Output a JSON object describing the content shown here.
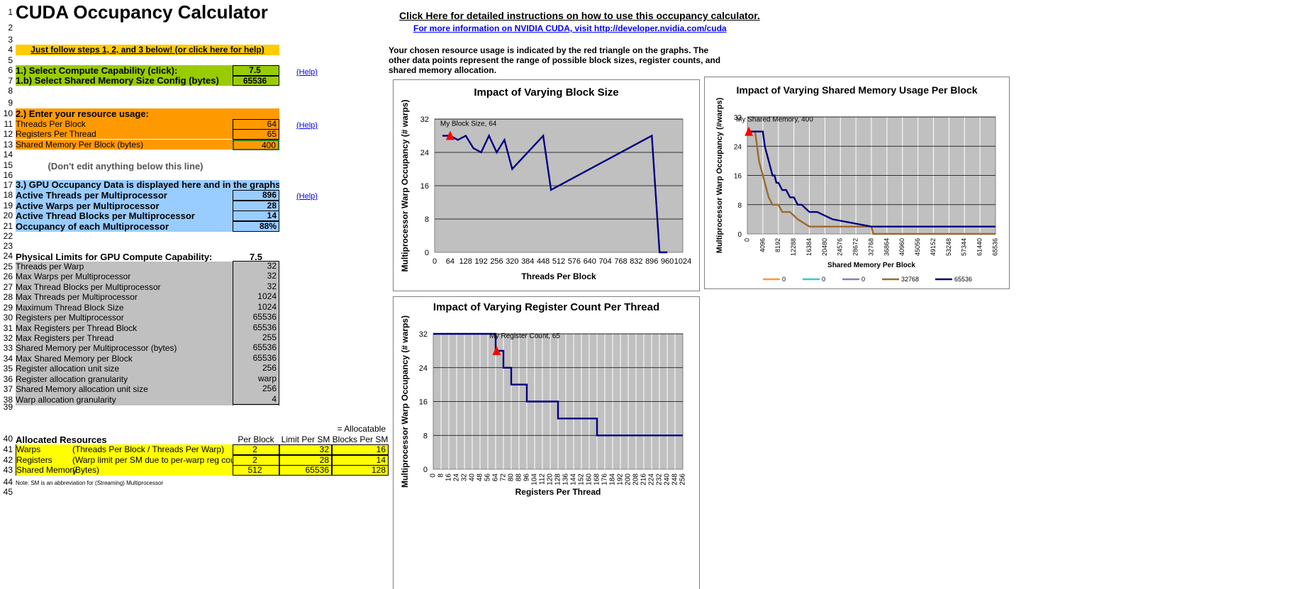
{
  "title": "CUDA Occupancy Calculator",
  "links": {
    "instructions": "Click Here for detailed instructions on how to use this occupancy calculator.",
    "more_info": "For more information on NVIDIA CUDA, visit http://developer.nvidia.com/cuda"
  },
  "rows": [
    "1",
    "2",
    "3",
    "4",
    "5",
    "6",
    "7",
    "8",
    "9",
    "10",
    "11",
    "12",
    "13",
    "14",
    "15",
    "16",
    "17",
    "18",
    "19",
    "20",
    "21",
    "22",
    "23",
    "24",
    "25",
    "26",
    "27",
    "28",
    "29",
    "30",
    "31",
    "32",
    "33",
    "34",
    "35",
    "36",
    "37",
    "38",
    "39",
    "40",
    "41",
    "42",
    "43",
    "44",
    "45"
  ],
  "banner": "Just follow steps 1, 2, and 3 below! (or click here for help)",
  "step1": {
    "label": "1.) Select Compute Capability (click):",
    "value": "7.5",
    "label_b": "1.b) Select Shared Memory Size Config (bytes)",
    "value_b": "65536",
    "help": "(Help)"
  },
  "step2": {
    "label": "2.) Enter your resource usage:",
    "items": [
      {
        "label": "Threads Per Block",
        "value": "64"
      },
      {
        "label": "Registers Per Thread",
        "value": "65"
      },
      {
        "label": "Shared Memory Per Block (bytes)",
        "value": "400"
      }
    ],
    "help": "(Help)"
  },
  "dont_edit": "(Don't edit anything below this line)",
  "step3": {
    "label": "3.) GPU Occupancy Data is displayed here and in the graphs:",
    "items": [
      {
        "label": "Active Threads per Multiprocessor",
        "value": "896"
      },
      {
        "label": "Active Warps per Multiprocessor",
        "value": "28"
      },
      {
        "label": "Active Thread Blocks per Multiprocessor",
        "value": "14"
      },
      {
        "label": "Occupancy of each Multiprocessor",
        "value": "88%"
      }
    ],
    "help": "(Help)"
  },
  "limits": {
    "label": "Physical Limits for GPU Compute Capability:",
    "value": "7.5",
    "items": [
      {
        "label": "Threads per Warp",
        "value": "32"
      },
      {
        "label": "Max Warps per Multiprocessor",
        "value": "32"
      },
      {
        "label": "Max Thread Blocks per Multiprocessor",
        "value": "32"
      },
      {
        "label": "Max Threads per Multiprocessor",
        "value": "1024"
      },
      {
        "label": "Maximum Thread Block Size",
        "value": "1024"
      },
      {
        "label": "Registers per Multiprocessor",
        "value": "65536"
      },
      {
        "label": "Max Registers per Thread Block",
        "value": "65536"
      },
      {
        "label": "Max Registers per Thread",
        "value": "255"
      },
      {
        "label": "Shared Memory per Multiprocessor (bytes)",
        "value": "65536"
      },
      {
        "label": "Max Shared Memory per Block",
        "value": "65536"
      },
      {
        "label": "Register allocation unit size",
        "value": "256"
      },
      {
        "label": "Register allocation granularity",
        "value": "warp"
      },
      {
        "label": "Shared Memory allocation unit size",
        "value": "256"
      },
      {
        "label": "Warp allocation granularity",
        "value": "4"
      }
    ]
  },
  "allocated": {
    "allocatable": "= Allocatable",
    "header": "Allocated Resources",
    "col_per_block": "Per Block",
    "col_limit": "Limit Per SM",
    "col_blocks": "Blocks Per SM",
    "rows": [
      {
        "name": "Warps",
        "desc": "(Threads Per Block / Threads Per Warp)",
        "per_block": "2",
        "limit": "32",
        "blocks": "16"
      },
      {
        "name": "Registers",
        "desc": "(Warp limit per SM due to per-warp reg count)",
        "per_block": "2",
        "limit": "28",
        "blocks": "14"
      },
      {
        "name": "Shared Memory",
        "desc": "(Bytes)",
        "per_block": "512",
        "limit": "65536",
        "blocks": "128"
      }
    ],
    "note": "Note: SM is an abbreviation for (Streaming) Multiprocessor"
  },
  "description": "Your chosen resource usage is indicated by the red triangle on the graphs.  The other data points represent the range of possible block sizes, register counts, and shared memory allocation.",
  "colors": {
    "green": "#99cc00",
    "orange": "#ff9900",
    "blue": "#99ccff",
    "gray": "#c0c0c0",
    "yellow": "#ffff00",
    "plot_bg": "#c0c0c0",
    "series_main": "#000080",
    "series_32768": "#9c6a2e",
    "marker": "#ff0000"
  },
  "chart_data": [
    {
      "type": "line",
      "title": "Impact of Varying Block Size",
      "xlabel": "Threads Per Block",
      "ylabel": "Multiprocessor Warp Occupancy (# warps)",
      "xlim": [
        0,
        1024
      ],
      "ylim": [
        0,
        32
      ],
      "xticks": [
        "0",
        "64",
        "128",
        "192",
        "256",
        "320",
        "384",
        "448",
        "512",
        "576",
        "640",
        "704",
        "768",
        "832",
        "896",
        "960",
        "1024"
      ],
      "yticks": [
        "0",
        "8",
        "16",
        "24",
        "32"
      ],
      "series": [
        {
          "x": [
            32,
            64,
            96,
            128,
            160,
            192,
            224,
            256,
            288,
            320,
            448,
            480,
            896,
            928,
            960
          ],
          "y": [
            28,
            28,
            27,
            28,
            25,
            24,
            28,
            24,
            27,
            20,
            28,
            15,
            28,
            0,
            0
          ]
        }
      ],
      "marker": {
        "x": 64,
        "y": 28,
        "label": "My Block Size, 64"
      }
    },
    {
      "type": "line",
      "title": "Impact of Varying Register Count Per Thread",
      "xlabel": "Registers Per Thread",
      "ylabel": "Multiprocessor Warp Occupancy (# warps)",
      "xlim": [
        0,
        256
      ],
      "ylim": [
        0,
        32
      ],
      "xticks": [
        "0",
        "8",
        "16",
        "24",
        "32",
        "40",
        "48",
        "56",
        "64",
        "72",
        "80",
        "88",
        "96",
        "104",
        "112",
        "120",
        "128",
        "136",
        "144",
        "152",
        "160",
        "168",
        "176",
        "184",
        "192",
        "200",
        "208",
        "216",
        "224",
        "232",
        "240",
        "248",
        "256"
      ],
      "yticks": [
        "0",
        "8",
        "16",
        "24",
        "32"
      ],
      "series": [
        {
          "x": [
            0,
            64,
            64,
            72,
            72,
            80,
            80,
            96,
            96,
            128,
            128,
            168,
            168,
            256
          ],
          "y": [
            32,
            32,
            28,
            28,
            24,
            24,
            20,
            20,
            16,
            16,
            12,
            12,
            8,
            8
          ]
        }
      ],
      "marker": {
        "x": 65,
        "y": 28,
        "label": "My Register Count, 65"
      }
    },
    {
      "type": "line",
      "title": "Impact of Varying Shared Memory Usage Per Block",
      "xlabel": "Shared Memory Per Block",
      "ylabel": "Multiprocessor Warp Occupancy (#warps)",
      "xlim": [
        0,
        65536
      ],
      "ylim": [
        0,
        32
      ],
      "xticks": [
        "0",
        "4096",
        "8192",
        "12288",
        "16384",
        "20480",
        "24576",
        "28672",
        "32768",
        "36864",
        "40960",
        "45056",
        "49152",
        "53248",
        "57344",
        "61440",
        "65536"
      ],
      "yticks": [
        "0",
        "8",
        "16",
        "24",
        "32"
      ],
      "series": [
        {
          "name": "0",
          "color": "#ff9933",
          "x": [],
          "y": []
        },
        {
          "name": "0",
          "color": "#33cccc",
          "x": [],
          "y": []
        },
        {
          "name": "0",
          "color": "#8080c0",
          "x": [],
          "y": []
        },
        {
          "name": "32768",
          "color": "#9c6a2e",
          "x": [
            0,
            2048,
            2560,
            3072,
            3584,
            4096,
            4608,
            5120,
            5632,
            6656,
            8192,
            9216,
            11264,
            13312,
            16384,
            32768,
            33280,
            65536
          ],
          "y": [
            28,
            28,
            24,
            20,
            18,
            16,
            14,
            12,
            10,
            8,
            8,
            6,
            6,
            4,
            2,
            2,
            0,
            0
          ]
        },
        {
          "name": "65536",
          "color": "#000080",
          "x": [
            0,
            4096,
            4608,
            5120,
            5632,
            6144,
            6656,
            7168,
            7680,
            8192,
            9216,
            10240,
            11264,
            12288,
            13312,
            14336,
            16384,
            18432,
            22528,
            32768,
            65536
          ],
          "y": [
            28,
            28,
            24,
            22,
            20,
            18,
            16,
            16,
            14,
            14,
            12,
            12,
            10,
            10,
            8,
            8,
            6,
            6,
            4,
            2,
            2
          ]
        }
      ],
      "marker": {
        "x": 400,
        "y": 28,
        "label": "My Shared Memory, 400"
      }
    }
  ]
}
